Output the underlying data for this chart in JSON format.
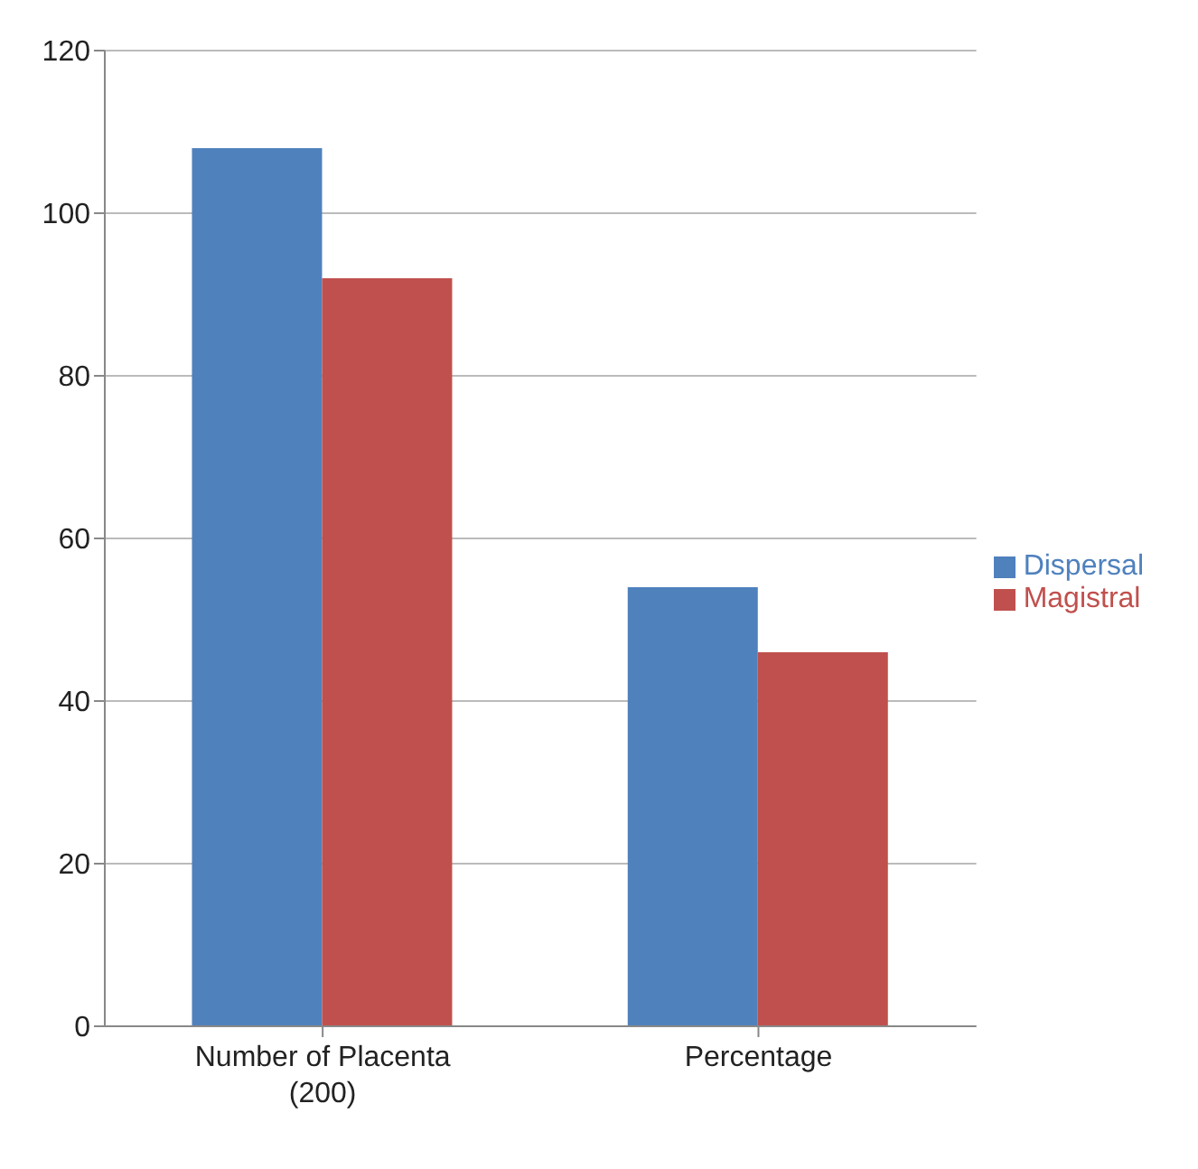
{
  "chart_data": {
    "type": "bar",
    "categories": [
      "Number of Placenta (200)",
      "Percentage"
    ],
    "series": [
      {
        "name": "Dispersal",
        "color": "#4f81bd",
        "values": [
          108,
          54
        ]
      },
      {
        "name": "Magistral",
        "color": "#c0504d",
        "values": [
          92,
          46
        ]
      }
    ],
    "ylim": [
      0,
      120
    ],
    "yticks": [
      0,
      20,
      40,
      60,
      80,
      100,
      120
    ],
    "grid": "y",
    "legend": "right"
  }
}
